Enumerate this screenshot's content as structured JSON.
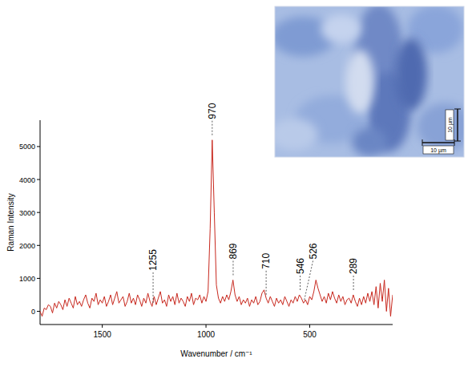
{
  "chart_data": {
    "type": "line",
    "x_label": "Wavenumber / cm⁻¹",
    "y_label": "Raman Intensity",
    "xlim": [
      1800,
      100
    ],
    "ylim": [
      -400,
      5800
    ],
    "xticks": [
      1500,
      1000,
      500
    ],
    "yticks": [
      0,
      1000,
      2000,
      3000,
      4000,
      5000
    ],
    "grid": false,
    "x": [
      1800,
      1790,
      1780,
      1770,
      1760,
      1750,
      1740,
      1730,
      1720,
      1710,
      1700,
      1690,
      1680,
      1670,
      1660,
      1650,
      1640,
      1630,
      1620,
      1610,
      1600,
      1590,
      1580,
      1570,
      1560,
      1550,
      1540,
      1530,
      1520,
      1510,
      1500,
      1490,
      1480,
      1470,
      1460,
      1450,
      1440,
      1430,
      1420,
      1410,
      1400,
      1390,
      1380,
      1370,
      1360,
      1350,
      1340,
      1330,
      1320,
      1310,
      1300,
      1290,
      1280,
      1270,
      1260,
      1250,
      1240,
      1230,
      1220,
      1210,
      1200,
      1190,
      1180,
      1170,
      1160,
      1150,
      1140,
      1130,
      1120,
      1110,
      1100,
      1090,
      1080,
      1070,
      1060,
      1050,
      1040,
      1030,
      1020,
      1010,
      1000,
      990,
      980,
      970,
      960,
      950,
      940,
      930,
      920,
      910,
      900,
      890,
      880,
      870,
      860,
      850,
      840,
      830,
      820,
      810,
      800,
      790,
      780,
      770,
      760,
      750,
      740,
      730,
      720,
      710,
      700,
      690,
      680,
      670,
      660,
      650,
      640,
      630,
      620,
      610,
      600,
      590,
      580,
      570,
      560,
      550,
      540,
      530,
      520,
      510,
      500,
      490,
      480,
      470,
      460,
      450,
      440,
      430,
      420,
      410,
      400,
      390,
      380,
      370,
      360,
      350,
      340,
      330,
      320,
      310,
      300,
      290,
      280,
      270,
      260,
      250,
      240,
      230,
      220,
      210,
      200,
      190,
      180,
      170,
      160,
      150,
      140,
      130,
      120,
      110,
      100
    ],
    "series": [
      {
        "color": "#c8281e",
        "values": [
          0,
          -150,
          100,
          50,
          200,
          150,
          -50,
          250,
          100,
          300,
          200,
          50,
          350,
          150,
          400,
          250,
          100,
          450,
          200,
          300,
          150,
          350,
          500,
          250,
          100,
          400,
          300,
          550,
          200,
          350,
          250,
          450,
          150,
          300,
          500,
          200,
          400,
          600,
          250,
          350,
          450,
          150,
          300,
          550,
          250,
          400,
          200,
          500,
          350,
          150,
          400,
          250,
          550,
          300,
          150,
          450,
          200,
          400,
          600,
          250,
          350,
          150,
          500,
          300,
          450,
          200,
          550,
          250,
          400,
          300,
          150,
          450,
          300,
          550,
          200,
          400,
          350,
          500,
          250,
          450,
          300,
          600,
          2500,
          5200,
          3000,
          800,
          400,
          250,
          450,
          300,
          500,
          350,
          600,
          950,
          500,
          300,
          450,
          200,
          350,
          250,
          400,
          150,
          350,
          250,
          450,
          200,
          300,
          550,
          650,
          400,
          250,
          450,
          300,
          150,
          400,
          250,
          350,
          200,
          450,
          300,
          150,
          350,
          250,
          450,
          300,
          500,
          400,
          250,
          350,
          200,
          450,
          350,
          600,
          950,
          700,
          500,
          300,
          450,
          250,
          550,
          350,
          600,
          400,
          250,
          500,
          300,
          450,
          200,
          350,
          400,
          250,
          500,
          300,
          150,
          400,
          200,
          450,
          250,
          550,
          300,
          600,
          200,
          750,
          100,
          850,
          300,
          950,
          0,
          700,
          -150,
          500
        ]
      }
    ],
    "annotations": [
      {
        "text": "1255",
        "x": 1255
      },
      {
        "text": "970",
        "x": 970
      },
      {
        "text": "869",
        "x": 869
      },
      {
        "text": "710",
        "x": 710
      },
      {
        "text": "546",
        "x": 546
      },
      {
        "text": "526",
        "x": 526
      },
      {
        "text": "289",
        "x": 289
      }
    ],
    "image_scale_labels": [
      "10 µm",
      "10 µm"
    ]
  }
}
